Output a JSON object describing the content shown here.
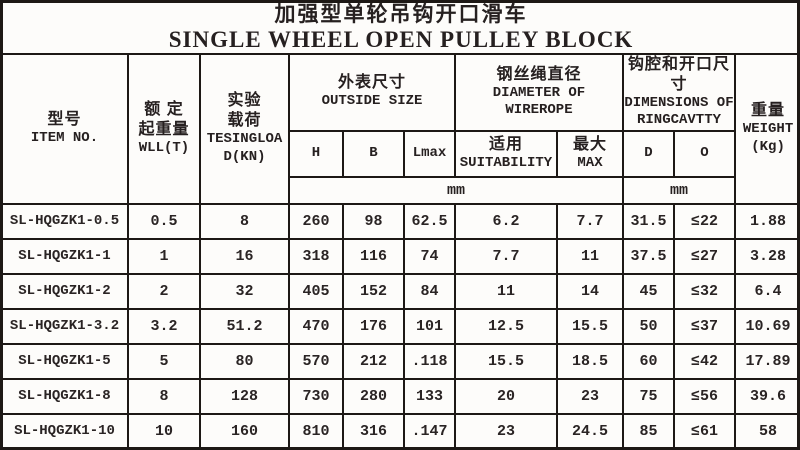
{
  "title": {
    "line1_zh": "加强型单轮吊钩开口滑车",
    "line2_en": "SINGLE WHEEL OPEN PULLEY BLOCK"
  },
  "header": {
    "item_no": {
      "zh": "型号",
      "en": "ITEM NO."
    },
    "wll": {
      "zh_line1": "额 定",
      "zh_line2": "起重量",
      "en": "WLL(T)"
    },
    "test_load": {
      "zh_line1": "实验",
      "zh_line2": "载荷",
      "en_line1": "TESINGLOA",
      "en_line2": "D(KN)"
    },
    "outside_size": {
      "zh": "外表尺寸",
      "en": "OUTSIDE SIZE"
    },
    "wirerope_dia": {
      "zh": "钢丝绳直径",
      "en_line1": "DIAMETER OF",
      "en_line2": "WIREROPE"
    },
    "ring_cavity": {
      "zh": "钩腔和开口尺寸",
      "en_line1": "DIMENSIONS OF",
      "en_line2": "RINGCAVTTY"
    },
    "weight": {
      "zh": "重量",
      "en": "WEIGHT",
      "unit": "(Kg)"
    },
    "sub": {
      "h": "H",
      "b": "B",
      "lmax": "Lmax",
      "suitability": {
        "zh": "适用",
        "en": "SUITABILITY"
      },
      "max": {
        "zh": "最大",
        "en": "MAX"
      },
      "d": "D",
      "o": "O"
    },
    "units": {
      "size_and_rope_mm": "mm",
      "ring_mm": "mm"
    }
  },
  "table": {
    "column_keys": [
      "item-no",
      "wll-t",
      "test-load-kn",
      "h-mm",
      "b-mm",
      "lmax-mm",
      "rope-suitability-mm",
      "rope-max-mm",
      "d-mm",
      "o-mm",
      "weight-kg"
    ],
    "rows": [
      [
        "SL-HQGZK1-0.5",
        "0.5",
        "8",
        "260",
        "98",
        "62.5",
        "6.2",
        "7.7",
        "31.5",
        "≤22",
        "1.88"
      ],
      [
        "SL-HQGZK1-1",
        "1",
        "16",
        "318",
        "116",
        "74",
        "7.7",
        "11",
        "37.5",
        "≤27",
        "3.28"
      ],
      [
        "SL-HQGZK1-2",
        "2",
        "32",
        "405",
        "152",
        "84",
        "11",
        "14",
        "45",
        "≤32",
        "6.4"
      ],
      [
        "SL-HQGZK1-3.2",
        "3.2",
        "51.2",
        "470",
        "176",
        "101",
        "12.5",
        "15.5",
        "50",
        "≤37",
        "10.69"
      ],
      [
        "SL-HQGZK1-5",
        "5",
        "80",
        "570",
        "212",
        ".118",
        "15.5",
        "18.5",
        "60",
        "≤42",
        "17.89"
      ],
      [
        "SL-HQGZK1-8",
        "8",
        "128",
        "730",
        "280",
        "133",
        "20",
        "23",
        "75",
        "≤56",
        "39.6"
      ],
      [
        "SL-HQGZK1-10",
        "10",
        "160",
        "810",
        "316",
        ".147",
        "23",
        "24.5",
        "85",
        "≤61",
        "58"
      ]
    ]
  },
  "colors": {
    "border": "#1d1815",
    "text": "#262020",
    "background": "#fdfcfa"
  }
}
